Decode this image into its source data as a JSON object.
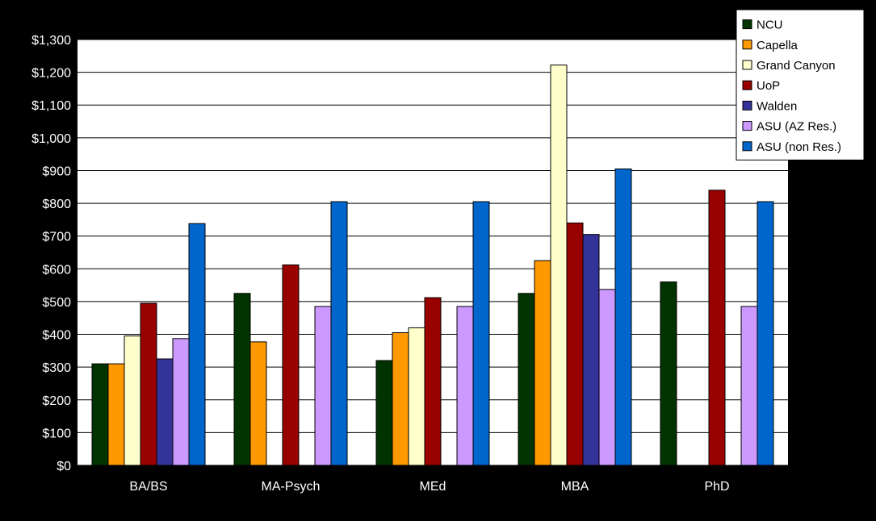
{
  "chart_data": {
    "type": "bar",
    "categories": [
      "BA/BS",
      "MA-Psych",
      "MEd",
      "MBA",
      "PhD"
    ],
    "ylim": [
      0,
      1300
    ],
    "yticks": [
      0,
      100,
      200,
      300,
      400,
      500,
      600,
      700,
      800,
      900,
      1000,
      1100,
      1200,
      1300
    ],
    "ytick_labels": [
      "$0",
      "$100",
      "$200",
      "$300",
      "$400",
      "$500",
      "$600",
      "$700",
      "$800",
      "$900",
      "$1,000",
      "$1,100",
      "$1,200",
      "$1,300"
    ],
    "grid": true,
    "legend_position": "top-right",
    "background": "#000000",
    "plot_background": "#FFFFFF",
    "series": [
      {
        "name": "NCU",
        "color": "#003300",
        "values": [
          310,
          525,
          320,
          525,
          560
        ]
      },
      {
        "name": "Capella",
        "color": "#FF9900",
        "values": [
          310,
          377,
          405,
          625,
          null
        ]
      },
      {
        "name": "Grand Canyon",
        "color": "#FFFFCC",
        "values": [
          395,
          null,
          420,
          1222,
          null
        ]
      },
      {
        "name": "UoP",
        "color": "#990000",
        "values": [
          495,
          612,
          512,
          740,
          840
        ]
      },
      {
        "name": "Walden",
        "color": "#333399",
        "values": [
          325,
          null,
          null,
          705,
          null
        ]
      },
      {
        "name": "ASU (AZ Res.)",
        "color": "#CC99FF",
        "values": [
          387,
          485,
          485,
          537,
          485
        ]
      },
      {
        "name": "ASU (non Res.)",
        "color": "#0066CC",
        "values": [
          738,
          805,
          805,
          905,
          805
        ]
      }
    ]
  }
}
